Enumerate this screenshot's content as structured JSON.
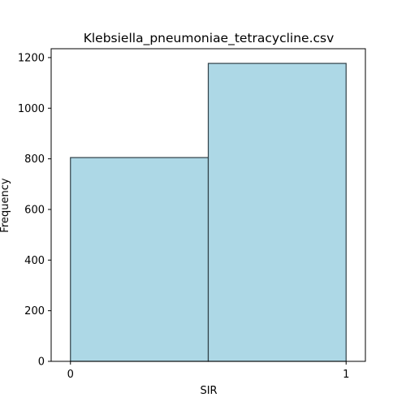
{
  "chart_data": {
    "type": "bar",
    "title": "Klebsiella_pneumoniae_tetracycline.csv",
    "xlabel": "SIR",
    "ylabel": "Frequency",
    "xlim": [
      -0.07,
      1.07
    ],
    "ylim": [
      0,
      1235
    ],
    "x_ticks": [
      0,
      1
    ],
    "y_ticks": [
      0,
      200,
      400,
      600,
      800,
      1000,
      1200
    ],
    "grid": false,
    "legend": "none",
    "bars": [
      {
        "x_start": 0.0,
        "x_end": 0.5,
        "value": 805
      },
      {
        "x_start": 0.5,
        "x_end": 1.0,
        "value": 0
      },
      {
        "x_start": 0.5,
        "x_end": 1.0,
        "value": 1177
      }
    ],
    "colors": {
      "bar_fill": "#ADD8E6",
      "bar_edge": "#2F3F46",
      "axis": "#000000"
    }
  }
}
